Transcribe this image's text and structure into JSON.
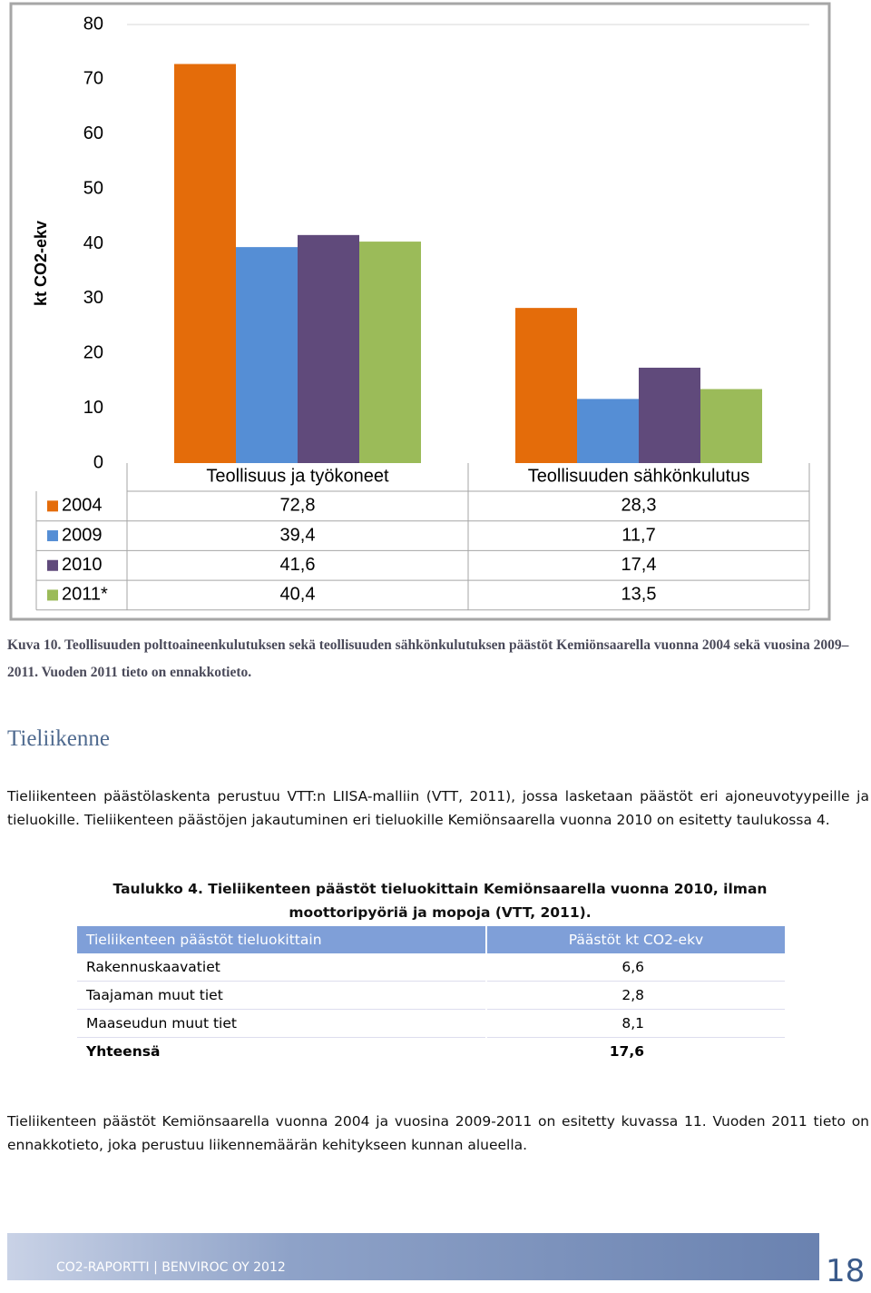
{
  "chart_data": {
    "type": "bar",
    "ylabel": "kt CO2-ekv",
    "categories": [
      "Teollisuus ja työkoneet",
      "Teollisuuden sähkönkulutus"
    ],
    "series": [
      {
        "name": "2004",
        "color": "#e46c0a",
        "values": [
          72.8,
          28.3
        ],
        "value_labels": [
          "72,8",
          "28,3"
        ]
      },
      {
        "name": "2009",
        "color": "#558ed5",
        "values": [
          39.4,
          11.7
        ],
        "value_labels": [
          "39,4",
          "11,7"
        ]
      },
      {
        "name": "2010",
        "color": "#604a7b",
        "values": [
          41.6,
          17.4
        ],
        "value_labels": [
          "41,6",
          "17,4"
        ]
      },
      {
        "name": "2011*",
        "color": "#9bbb59",
        "values": [
          40.4,
          13.5
        ],
        "value_labels": [
          "40,4",
          "13,5"
        ]
      }
    ],
    "ylim": [
      0,
      80
    ],
    "yticks": [
      0,
      10,
      20,
      30,
      40,
      50,
      60,
      70,
      80
    ],
    "grid": false
  },
  "caption": "Kuva 10. Teollisuuden polttoaineenkulutuksen sekä teollisuuden sähkönkulutuksen päästöt Kemiönsaarella vuonna 2004 sekä vuosina 2009–2011. Vuoden 2011 tieto on ennakkotieto.",
  "heading": "Tieliikenne",
  "paragraph1": "Tieliikenteen päästölaskenta perustuu VTT:n LIISA-malliin (VTT, 2011), jossa lasketaan päästöt eri ajoneuvotyypeille ja tieluokille. Tieliikenteen päästöjen jakautuminen eri tieluokille Kemiönsaarella vuonna 2010 on esitetty taulukossa 4.",
  "table": {
    "caption": "Taulukko 4. Tieliikenteen päästöt tieluokittain Kemiönsaarella vuonna 2010, ilman moottoripyöriä ja mopoja (VTT, 2011).",
    "header": [
      "Tieliikenteen päästöt tieluokittain",
      "Päästöt kt CO2-ekv"
    ],
    "rows": [
      [
        "Rakennuskaavatiet",
        "6,6"
      ],
      [
        "Taajaman muut tiet",
        "2,8"
      ],
      [
        "Maaseudun muut tiet",
        "8,1"
      ],
      [
        "Yhteensä",
        "17,6"
      ]
    ]
  },
  "paragraph2": "Tieliikenteen päästöt Kemiönsaarella vuonna 2004 ja vuosina 2009-2011 on esitetty kuvassa 11. Vuoden 2011 tieto on ennakkotieto, joka perustuu liikennemäärän kehitykseen kunnan alueella.",
  "footer": {
    "text": "CO2-RAPORTTI | BENVIROC OY 2012",
    "page": "18"
  }
}
